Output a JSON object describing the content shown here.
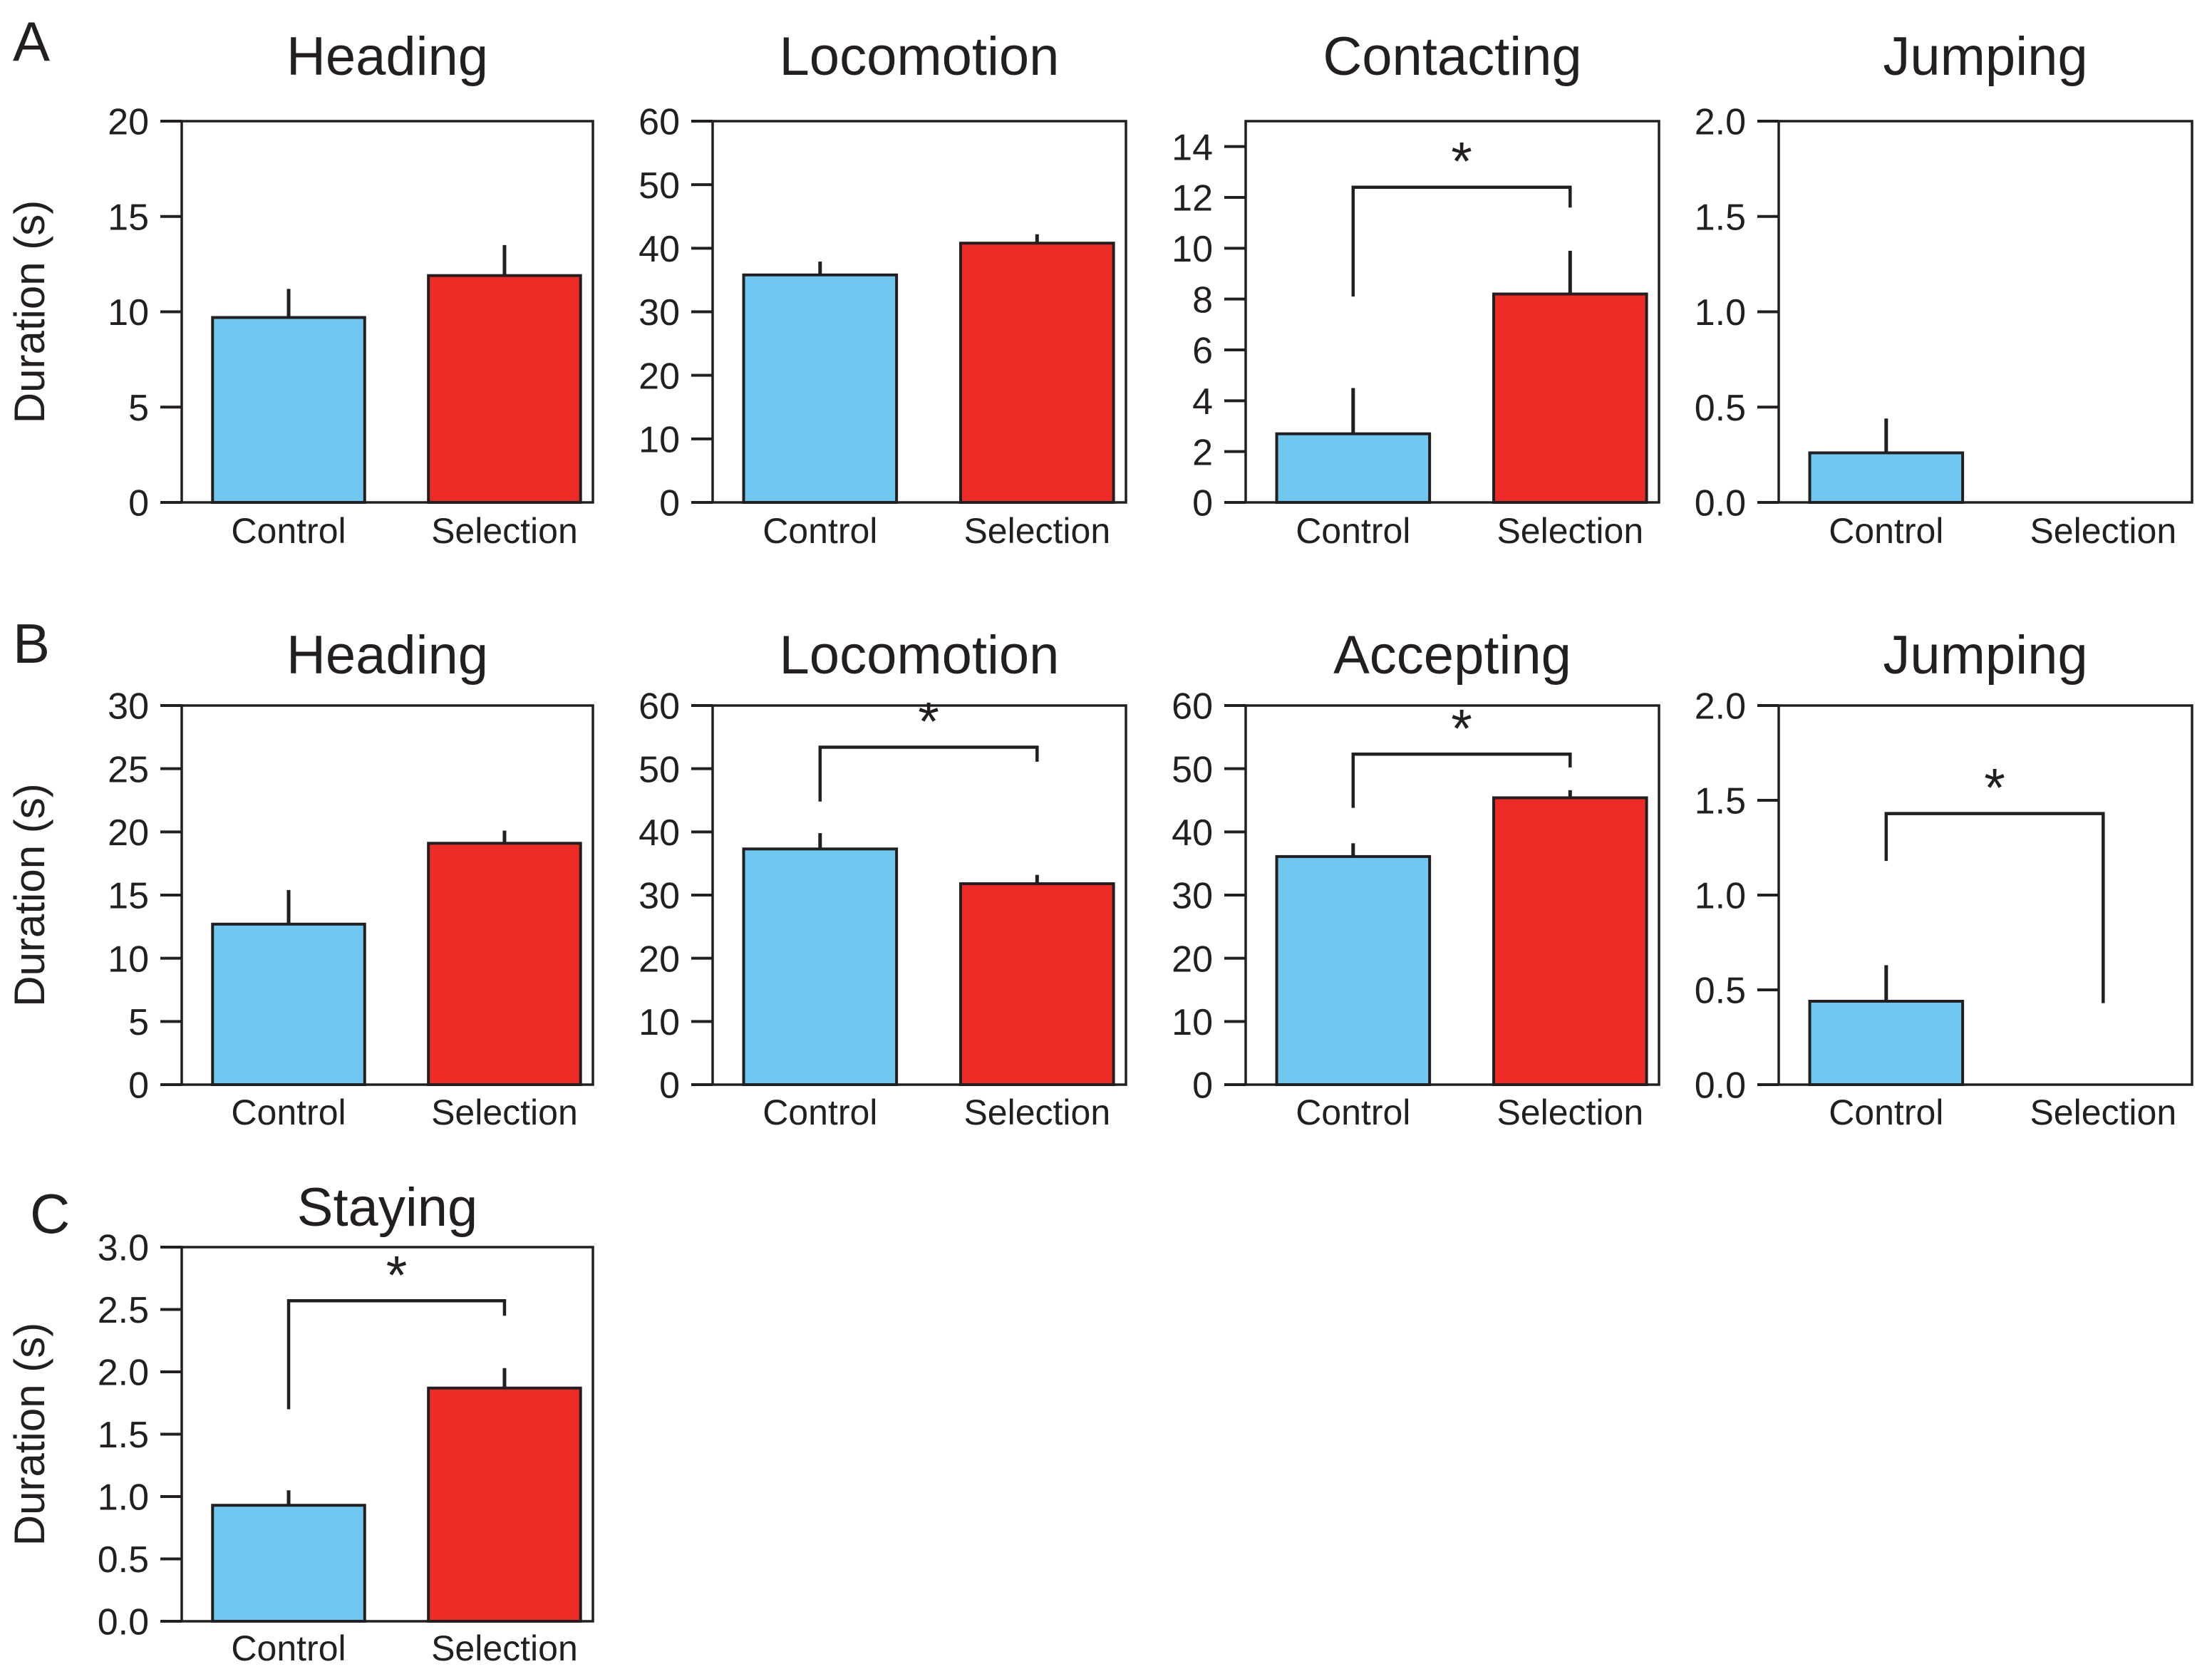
{
  "figure": {
    "categories": [
      "Control",
      "Selection"
    ],
    "y_axis_label": "Duration (s)",
    "significance_symbol": "*",
    "colors": {
      "control_bar": "#70C8F0",
      "selection_bar": "#EE2B26",
      "line": "#231F20",
      "background": "#FFFFFF"
    },
    "panel_labels": [
      "A",
      "B",
      "C"
    ]
  },
  "chart_data": [
    {
      "type": "bar",
      "row": 0,
      "col": 0,
      "panel_label": "A",
      "title": "Heading",
      "has_y_axis_label": true,
      "ylim": [
        0,
        20
      ],
      "yticks": [
        0,
        5,
        10,
        15,
        20
      ],
      "tick_decimals": 0,
      "categories": [
        "Control",
        "Selection"
      ],
      "values": [
        9.7,
        11.9
      ],
      "errors_top": [
        11.2,
        13.5
      ],
      "significance": null
    },
    {
      "type": "bar",
      "row": 0,
      "col": 1,
      "panel_label": null,
      "title": "Locomotion",
      "has_y_axis_label": false,
      "ylim": [
        0,
        60
      ],
      "yticks": [
        0,
        10,
        20,
        30,
        40,
        50,
        60
      ],
      "tick_decimals": 0,
      "categories": [
        "Control",
        "Selection"
      ],
      "values": [
        35.8,
        40.8
      ],
      "errors_top": [
        37.9,
        42.2
      ],
      "significance": null
    },
    {
      "type": "bar",
      "row": 0,
      "col": 2,
      "panel_label": null,
      "title": "Contacting",
      "has_y_axis_label": false,
      "ylim": [
        0,
        15
      ],
      "yticks": [
        0,
        2,
        4,
        6,
        8,
        10,
        12,
        14
      ],
      "tick_decimals": 0,
      "categories": [
        "Control",
        "Selection"
      ],
      "values": [
        2.7,
        8.2
      ],
      "errors_top": [
        4.5,
        9.9
      ],
      "significance": {
        "bracket_y": 12.4,
        "left_drop_to": 8.1,
        "right_drop_to": 11.6,
        "label": "*"
      }
    },
    {
      "type": "bar",
      "row": 0,
      "col": 3,
      "panel_label": null,
      "title": "Jumping",
      "has_y_axis_label": false,
      "ylim": [
        0,
        2
      ],
      "yticks": [
        0,
        0.5,
        1,
        1.5,
        2
      ],
      "tick_decimals": 1,
      "categories": [
        "Control",
        "Selection"
      ],
      "values": [
        0.26,
        0
      ],
      "errors_top": [
        0.44,
        null
      ],
      "significance": null
    },
    {
      "type": "bar",
      "row": 1,
      "col": 0,
      "panel_label": "B",
      "title": "Heading",
      "has_y_axis_label": true,
      "ylim": [
        0,
        30
      ],
      "yticks": [
        0,
        5,
        10,
        15,
        20,
        25,
        30
      ],
      "tick_decimals": 0,
      "categories": [
        "Control",
        "Selection"
      ],
      "values": [
        12.7,
        19.1
      ],
      "errors_top": [
        15.4,
        20.1
      ],
      "significance": null
    },
    {
      "type": "bar",
      "row": 1,
      "col": 1,
      "panel_label": null,
      "title": "Locomotion",
      "has_y_axis_label": false,
      "ylim": [
        0,
        60
      ],
      "yticks": [
        0,
        10,
        20,
        30,
        40,
        50,
        60
      ],
      "tick_decimals": 0,
      "categories": [
        "Control",
        "Selection"
      ],
      "values": [
        37.3,
        31.8
      ],
      "errors_top": [
        39.8,
        33.2
      ],
      "significance": {
        "bracket_y": 53.4,
        "left_drop_to": 44.8,
        "right_drop_to": 51.1,
        "label": "*"
      }
    },
    {
      "type": "bar",
      "row": 1,
      "col": 2,
      "panel_label": null,
      "title": "Accepting",
      "has_y_axis_label": false,
      "ylim": [
        0,
        60
      ],
      "yticks": [
        0,
        10,
        20,
        30,
        40,
        50,
        60
      ],
      "tick_decimals": 0,
      "categories": [
        "Control",
        "Selection"
      ],
      "values": [
        36.1,
        45.4
      ],
      "errors_top": [
        38.2,
        46.6
      ],
      "significance": {
        "bracket_y": 52.3,
        "left_drop_to": 43.8,
        "right_drop_to": 50.2,
        "label": "*"
      }
    },
    {
      "type": "bar",
      "row": 1,
      "col": 3,
      "panel_label": null,
      "title": "Jumping",
      "has_y_axis_label": false,
      "ylim": [
        0,
        2
      ],
      "yticks": [
        0,
        0.5,
        1,
        1.5,
        2
      ],
      "tick_decimals": 1,
      "categories": [
        "Control",
        "Selection"
      ],
      "values": [
        0.44,
        0
      ],
      "errors_top": [
        0.63,
        null
      ],
      "significance": {
        "bracket_y": 1.43,
        "left_drop_to": 1.18,
        "right_drop_to": 0.43,
        "label": "*"
      }
    },
    {
      "type": "bar",
      "row": 2,
      "col": 0,
      "panel_label": "C",
      "title": "Staying",
      "has_y_axis_label": true,
      "ylim": [
        0,
        3
      ],
      "yticks": [
        0,
        0.5,
        1,
        1.5,
        2,
        2.5,
        3
      ],
      "tick_decimals": 1,
      "categories": [
        "Control",
        "Selection"
      ],
      "values": [
        0.93,
        1.87
      ],
      "errors_top": [
        1.05,
        2.03
      ],
      "significance": {
        "bracket_y": 2.57,
        "left_drop_to": 1.7,
        "right_drop_to": 2.45,
        "label": "*"
      }
    }
  ]
}
